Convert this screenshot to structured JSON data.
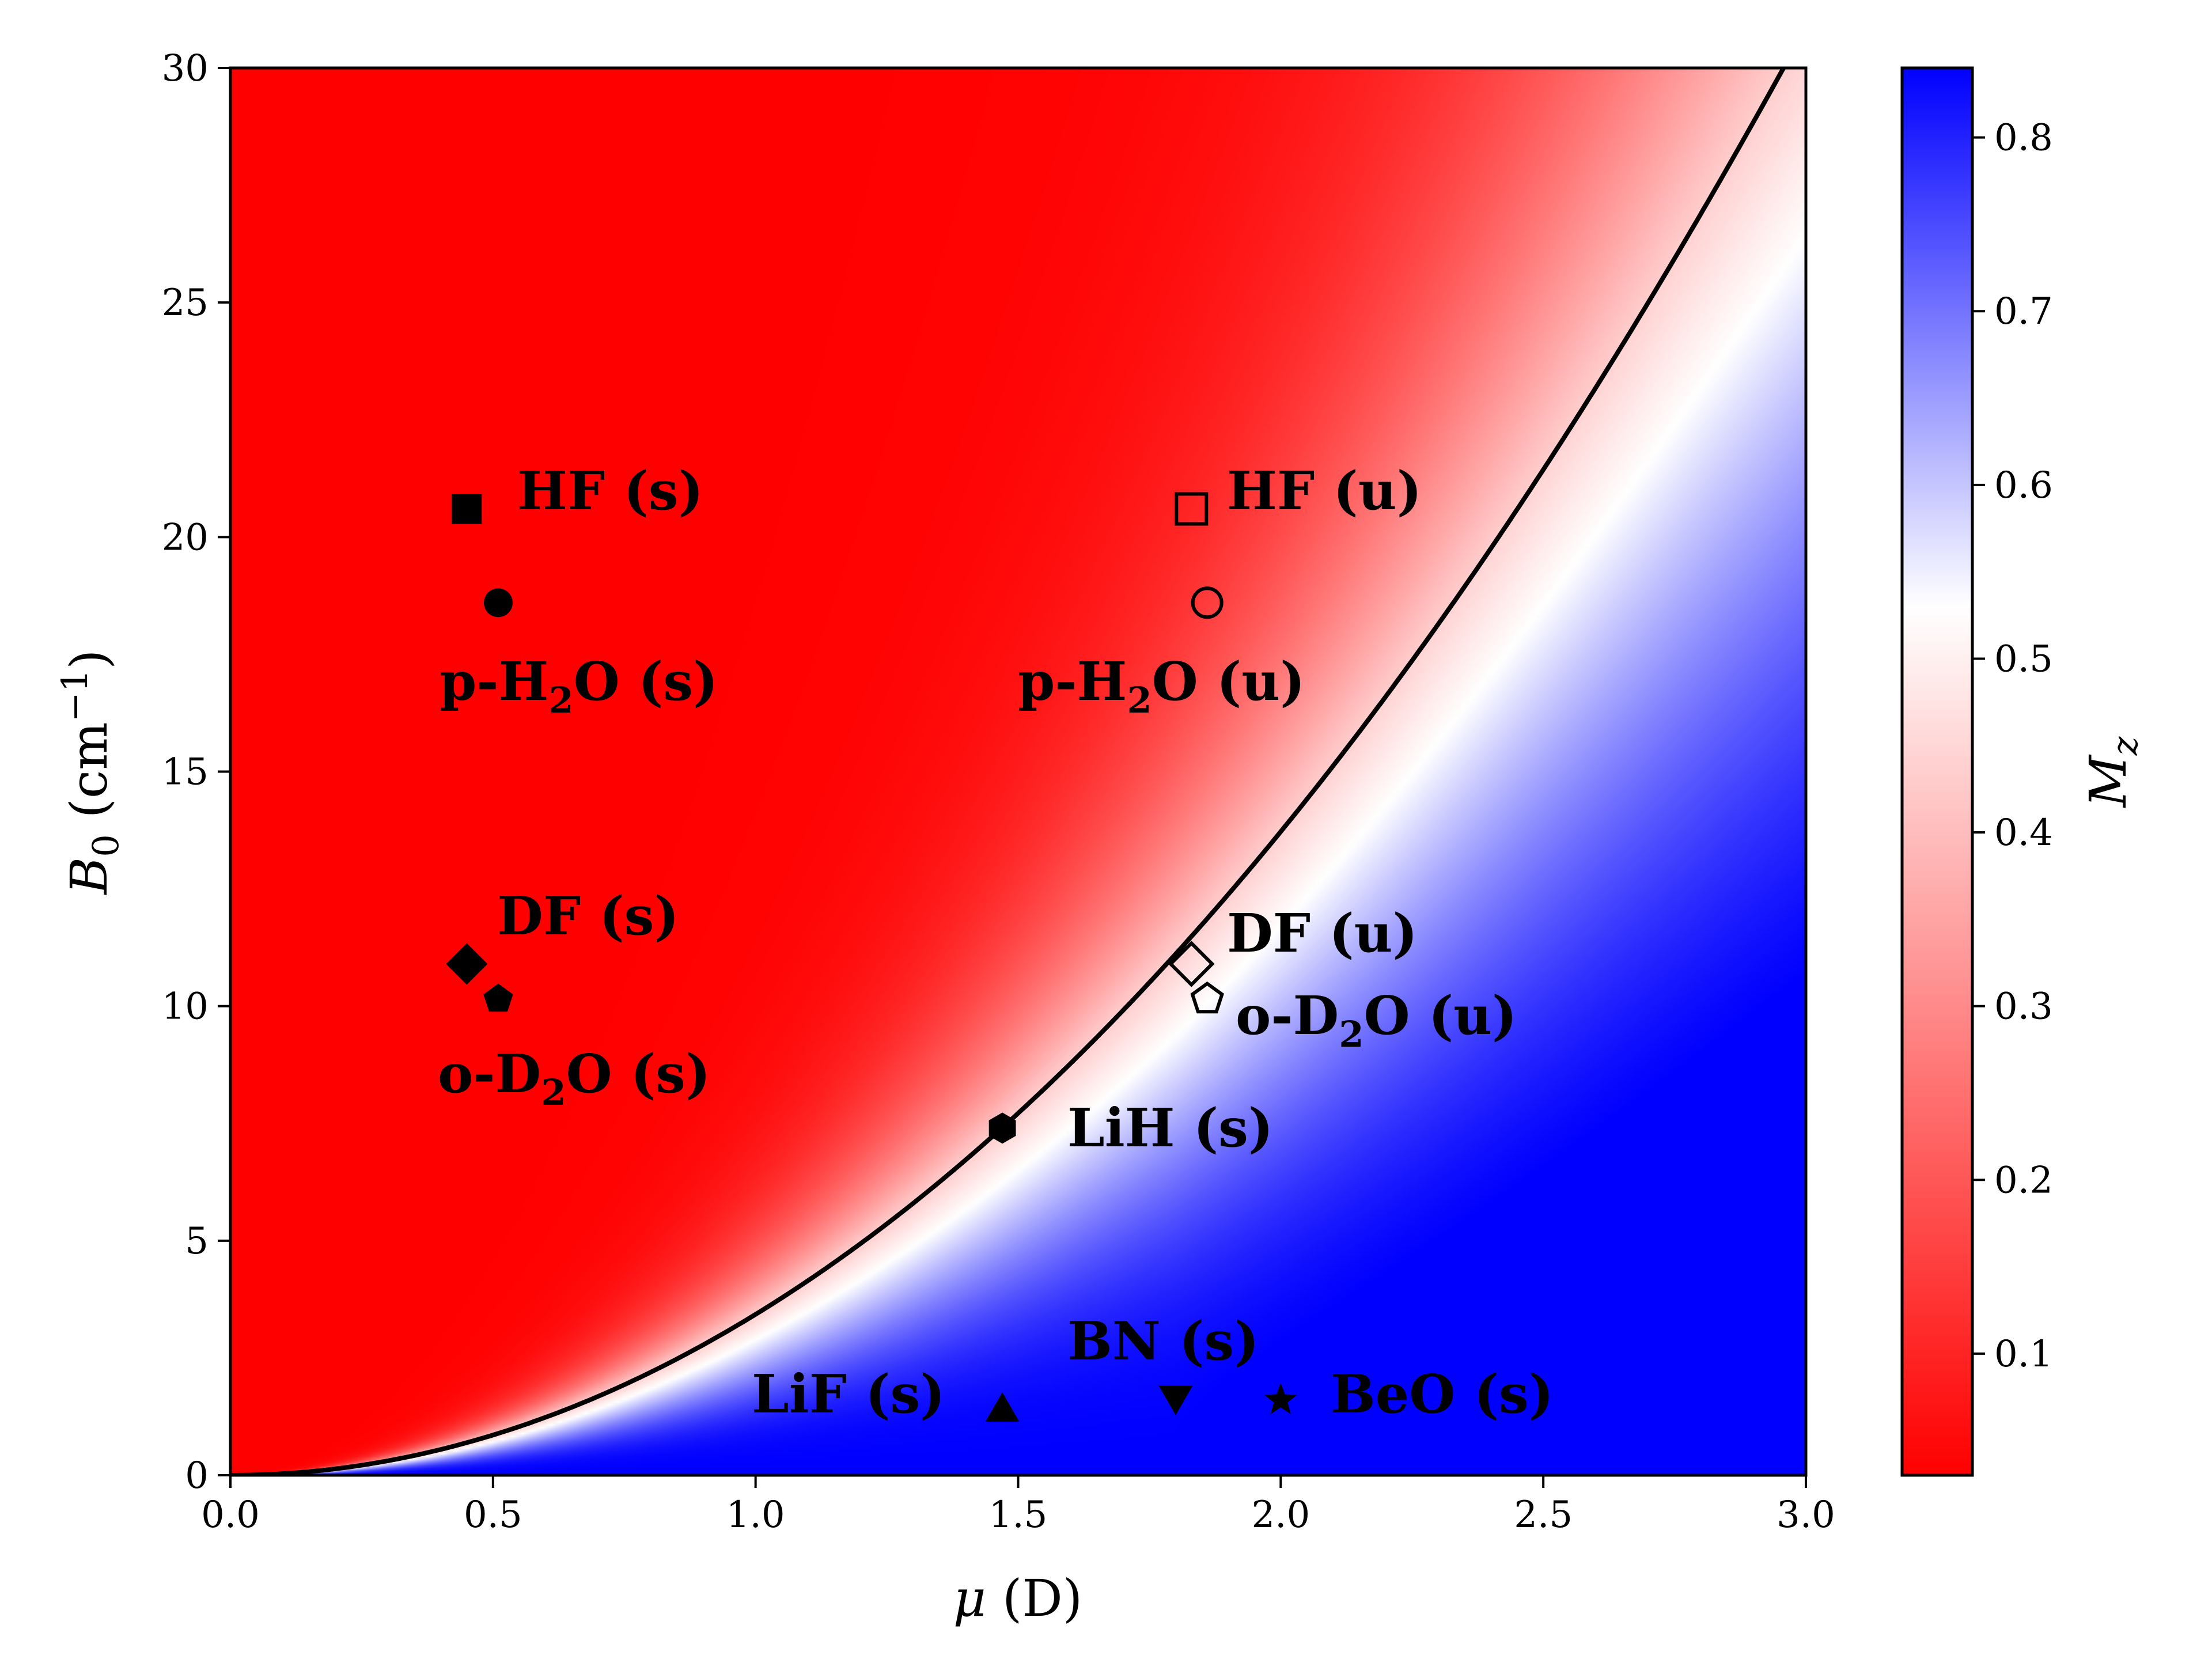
{
  "chart_data": {
    "type": "heatmap",
    "xlabel": "μ (D)",
    "ylabel": "B0 (cm−1)",
    "xlim": [
      0.0,
      3.0
    ],
    "ylim": [
      0,
      30
    ],
    "x_ticks": [
      "0.0",
      "0.5",
      "1.0",
      "1.5",
      "2.0",
      "2.5",
      "3.0"
    ],
    "y_ticks": [
      "0",
      "5",
      "10",
      "15",
      "20",
      "25",
      "30"
    ],
    "colorbar": {
      "label": "Mz",
      "range": [
        0.03,
        0.84
      ],
      "ticks": [
        "0.1",
        "0.2",
        "0.3",
        "0.4",
        "0.5",
        "0.6",
        "0.7",
        "0.8"
      ],
      "colormap": [
        "#ff0000",
        "#ffffff",
        "#0000ff"
      ],
      "center": 0.53
    },
    "boundary": {
      "equation": "B0 = 3.43 * mu^2",
      "color": "#000000"
    },
    "points": [
      {
        "label": "HF (s)",
        "x": 0.45,
        "y": 20.6,
        "marker": "square",
        "filled": true
      },
      {
        "label": "HF (u)",
        "x": 1.83,
        "y": 20.6,
        "marker": "square",
        "filled": false
      },
      {
        "label": "p-H2O (s)",
        "x": 0.51,
        "y": 18.6,
        "marker": "circle",
        "filled": true
      },
      {
        "label": "p-H2O (u)",
        "x": 1.86,
        "y": 18.6,
        "marker": "circle",
        "filled": false
      },
      {
        "label": "DF (s)",
        "x": 0.45,
        "y": 10.9,
        "marker": "diamond",
        "filled": true
      },
      {
        "label": "DF (u)",
        "x": 1.83,
        "y": 10.9,
        "marker": "diamond",
        "filled": false
      },
      {
        "label": "o-D2O (s)",
        "x": 0.51,
        "y": 10.15,
        "marker": "pentagon",
        "filled": true
      },
      {
        "label": "o-D2O (u)",
        "x": 1.86,
        "y": 10.15,
        "marker": "pentagon",
        "filled": false
      },
      {
        "label": "LiH (s)",
        "x": 1.47,
        "y": 7.4,
        "marker": "hexagon",
        "filled": true
      },
      {
        "label": "LiF (s)",
        "x": 1.47,
        "y": 1.35,
        "marker": "triangle-up",
        "filled": true
      },
      {
        "label": "BN (s)",
        "x": 1.8,
        "y": 1.7,
        "marker": "triangle-down",
        "filled": true
      },
      {
        "label": "BeO (s)",
        "x": 2.0,
        "y": 1.6,
        "marker": "star",
        "filled": true
      }
    ]
  }
}
